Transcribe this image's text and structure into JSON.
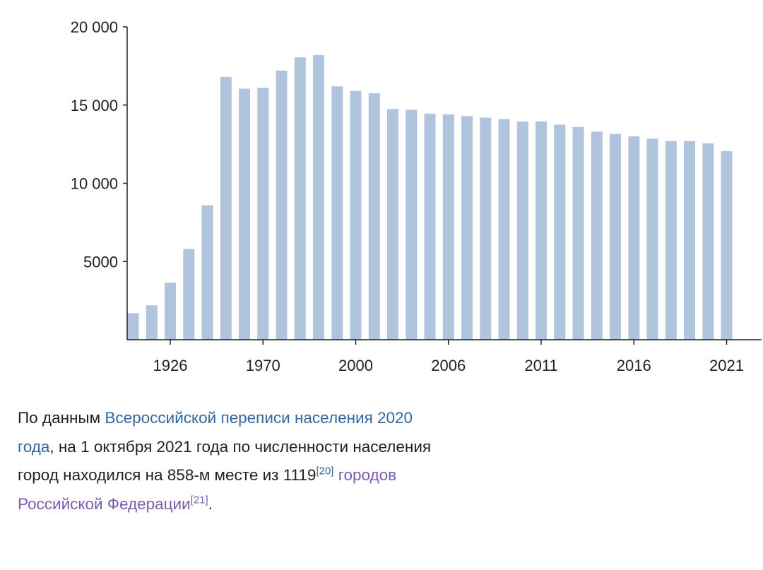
{
  "chart_data": {
    "type": "bar",
    "bar_color": "#b0c4de",
    "axis_color": "#202122",
    "values": [
      1700,
      2200,
      3650,
      5800,
      8600,
      16800,
      16050,
      16100,
      17200,
      18050,
      18200,
      16200,
      15900,
      15750,
      14750,
      14700,
      14450,
      14400,
      14300,
      14200,
      14100,
      13950,
      13950,
      13750,
      13600,
      13300,
      13150,
      13000,
      12850,
      12700,
      12700,
      12550,
      12050
    ],
    "x_tick_labels": [
      {
        "bar_index": 2,
        "label": "1926"
      },
      {
        "bar_index": 7,
        "label": "1970"
      },
      {
        "bar_index": 12,
        "label": "2000"
      },
      {
        "bar_index": 17,
        "label": "2006"
      },
      {
        "bar_index": 22,
        "label": "2011"
      },
      {
        "bar_index": 27,
        "label": "2016"
      },
      {
        "bar_index": 32,
        "label": "2021"
      }
    ],
    "y_ticks": [
      {
        "value": 5000,
        "label": "5000"
      },
      {
        "value": 10000,
        "label": "10 000"
      },
      {
        "value": 15000,
        "label": "15 000"
      },
      {
        "value": 20000,
        "label": "20 000"
      }
    ],
    "ylim": [
      0,
      20000
    ],
    "grid": false,
    "legend": "none"
  },
  "caption": {
    "text_1": "По данным ",
    "link_census": "Всероссийской переписи населения 2020 года",
    "text_2": ", на 1 октября 2021 года по численности населения город находился на 858-м месте из 1119",
    "ref_20": "[20]",
    "text_3": " ",
    "link_cities": "городов Российской Федерации",
    "ref_21": "[21]",
    "text_4": "."
  }
}
